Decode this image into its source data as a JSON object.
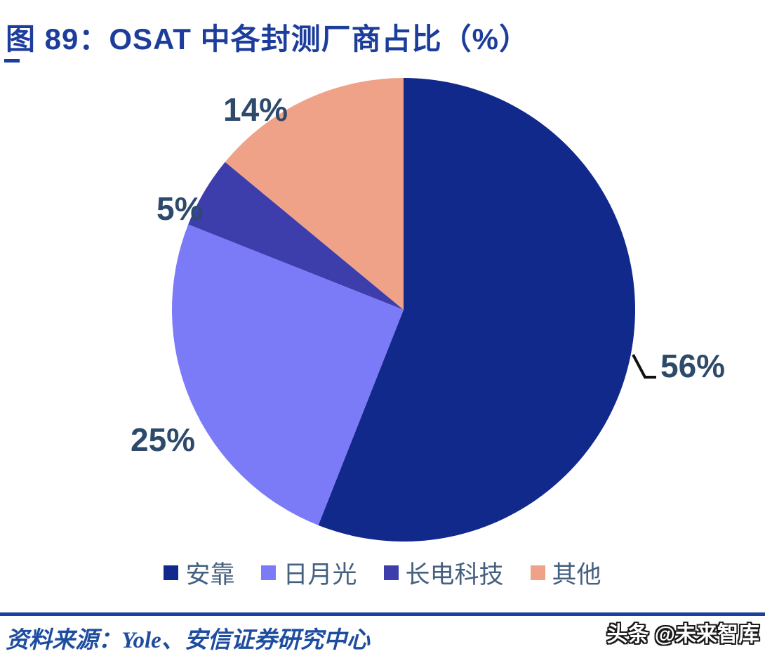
{
  "title": {
    "text": "图 89：OSAT 中各封测厂商占比（%）"
  },
  "chart_data": {
    "type": "pie",
    "title": "OSAT 中各封测厂商占比（%）",
    "categories": [
      "安靠",
      "日月光",
      "长电科技",
      "其他"
    ],
    "values": [
      56,
      25,
      5,
      14
    ],
    "unit": "%",
    "colors": [
      "#12298c",
      "#7b7bf8",
      "#3d3dab",
      "#efa287"
    ],
    "start_angle_deg": 0,
    "direction": "clockwise",
    "legend_position": "bottom",
    "data_labels": [
      "56%",
      "25%",
      "5%",
      "14%"
    ]
  },
  "legend": {
    "items": [
      {
        "label": "安靠",
        "color": "#12298c"
      },
      {
        "label": "日月光",
        "color": "#7b7bf8"
      },
      {
        "label": "长电科技",
        "color": "#3d3dab"
      },
      {
        "label": "其他",
        "color": "#efa287"
      }
    ]
  },
  "source": {
    "text": "资料来源：Yole、安信证券研究中心"
  },
  "watermark": {
    "text": "头条 @未来智库"
  }
}
